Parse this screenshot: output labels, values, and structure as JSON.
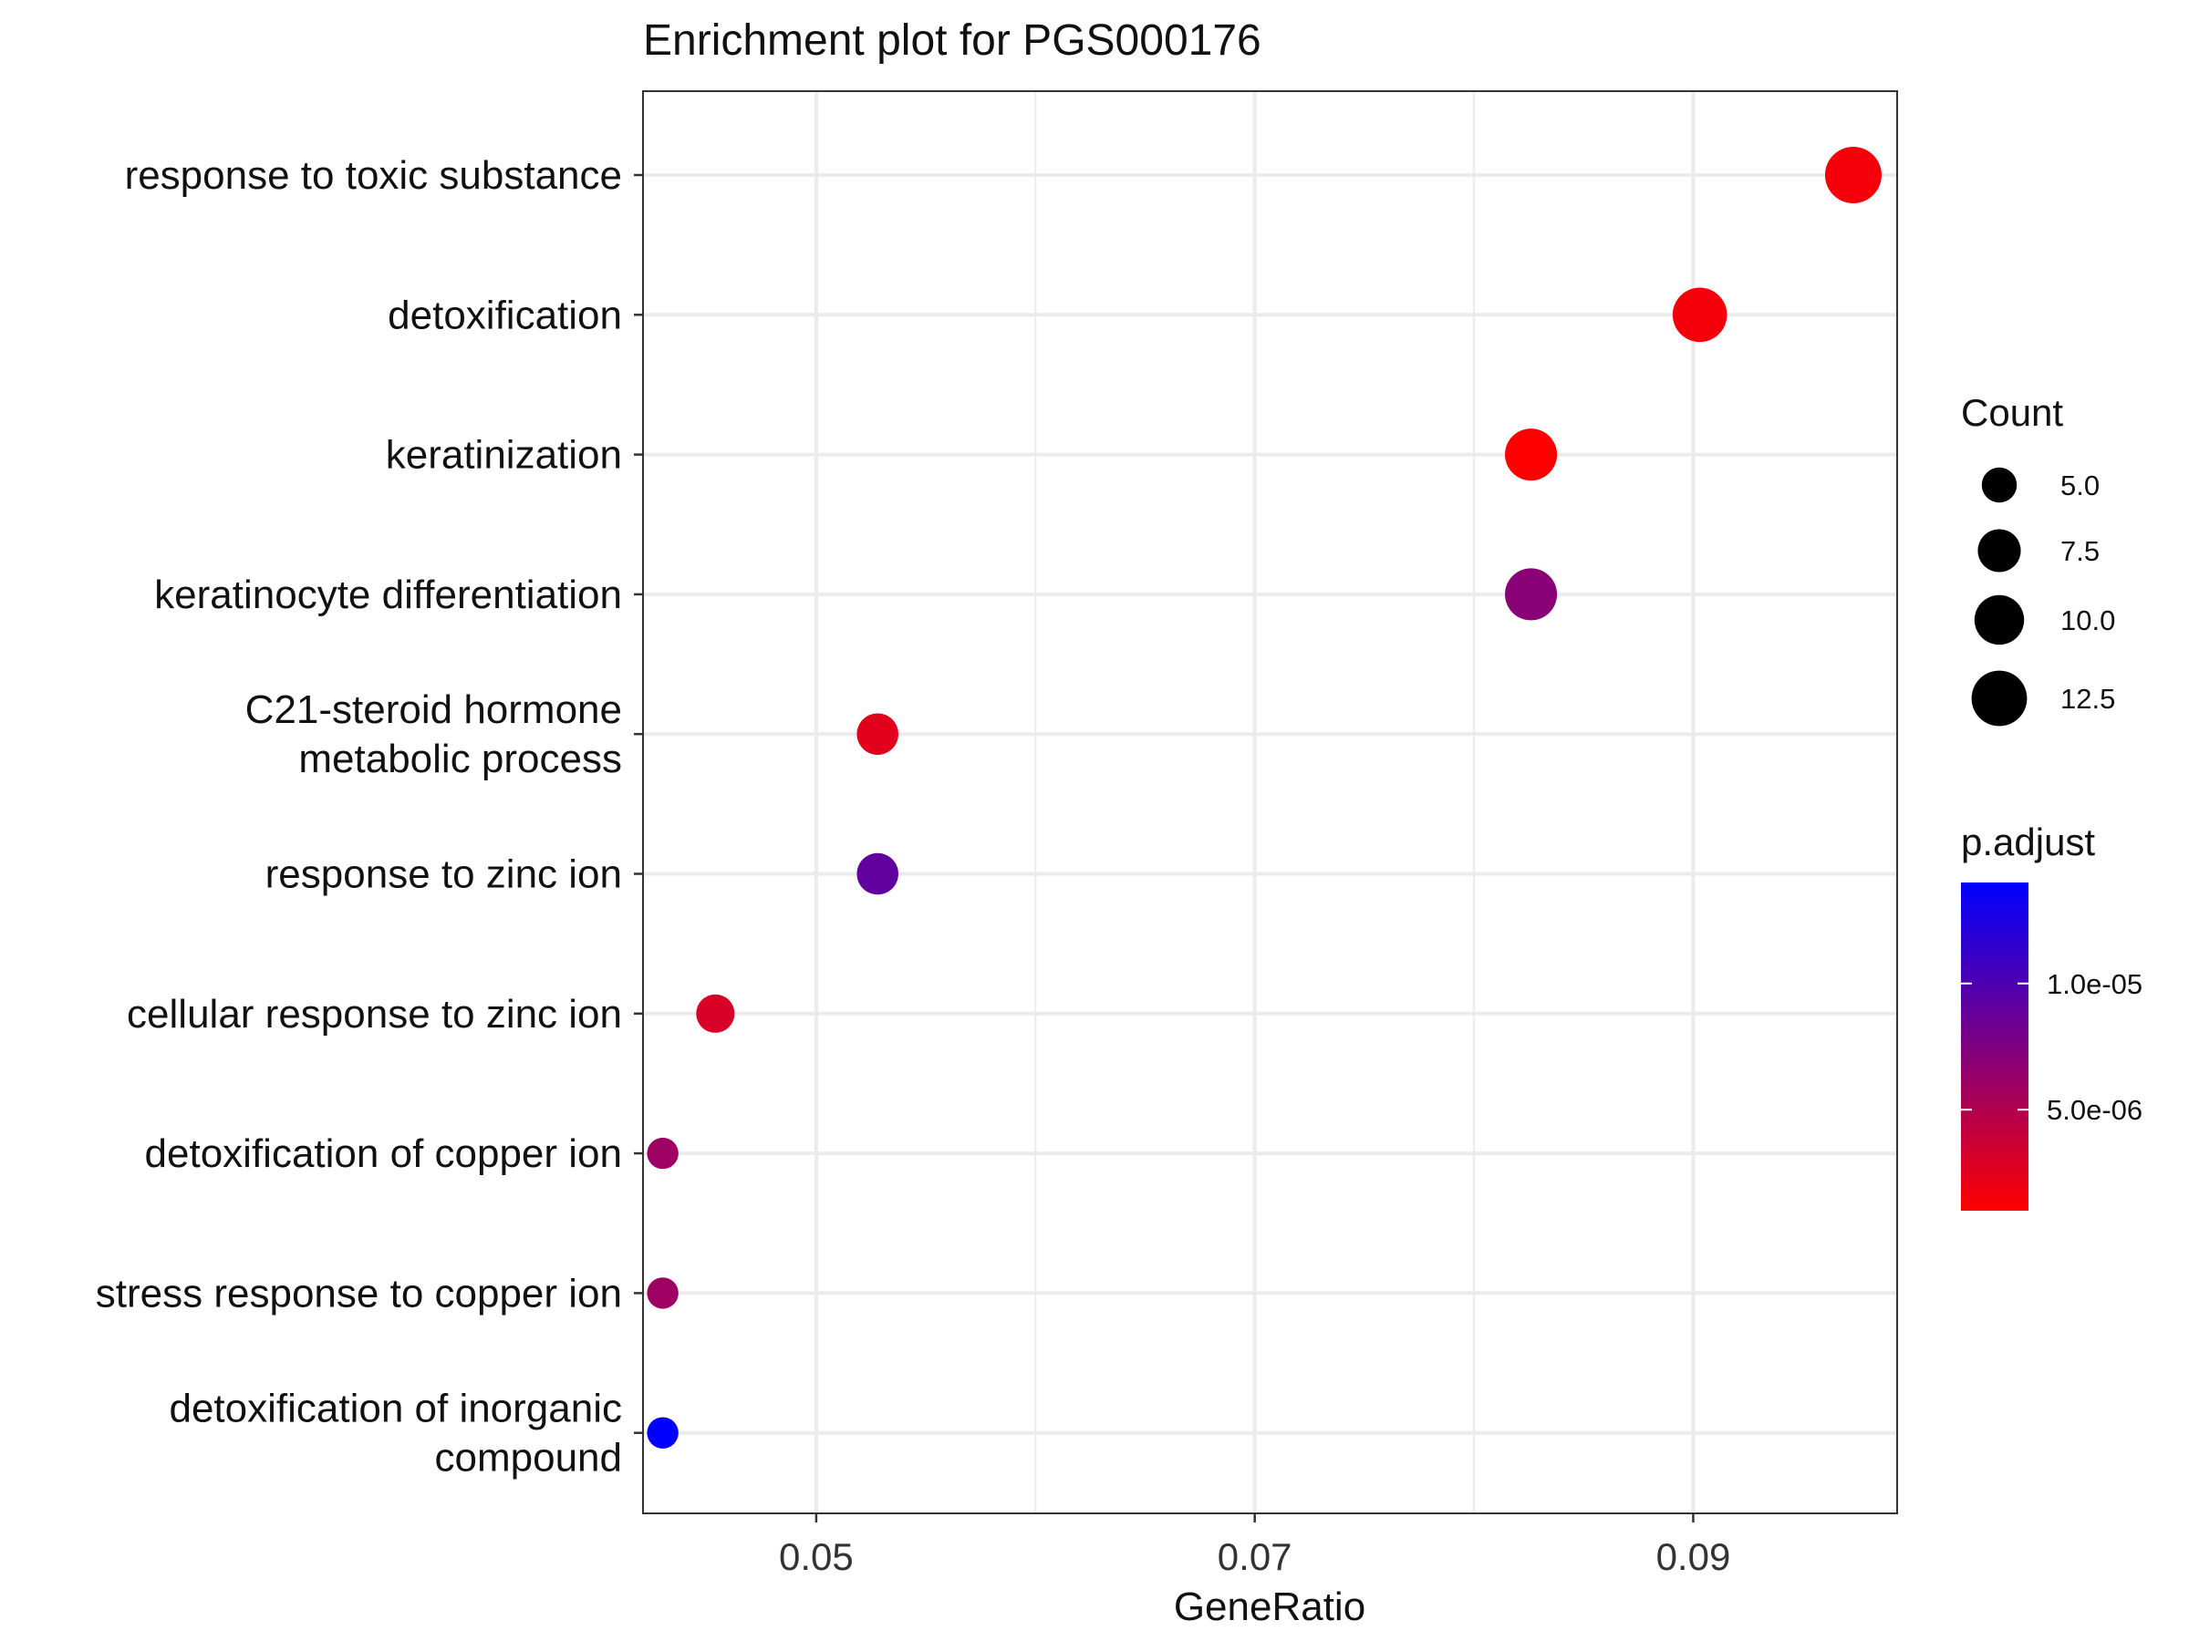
{
  "chart_data": {
    "type": "scatter",
    "title": "Enrichment plot for PGS000176",
    "xlabel": "GeneRatio",
    "ylabel": "",
    "xlim": [
      0.0421,
      0.0993
    ],
    "x_ticks": [
      0.05,
      0.07,
      0.09
    ],
    "x_tick_labels": [
      "0.05",
      "0.07",
      "0.09"
    ],
    "grid": true,
    "categories": [
      [
        "response to toxic substance"
      ],
      [
        "detoxification"
      ],
      [
        "keratinization"
      ],
      [
        "keratinocyte differentiation"
      ],
      [
        "C21-steroid hormone",
        "metabolic process"
      ],
      [
        "response to zinc ion"
      ],
      [
        "cellular response to zinc ion"
      ],
      [
        "detoxification of copper ion"
      ],
      [
        "stress response to copper ion"
      ],
      [
        "detoxification of inorganic",
        "compound"
      ]
    ],
    "points": [
      {
        "x": 0.0973,
        "count": 13,
        "p_adjust": 1.5e-06
      },
      {
        "x": 0.0903,
        "count": 12,
        "p_adjust": 1.5e-06
      },
      {
        "x": 0.0826,
        "count": 11,
        "p_adjust": 1e-06
      },
      {
        "x": 0.0826,
        "count": 11,
        "p_adjust": 7e-06
      },
      {
        "x": 0.0528,
        "count": 7,
        "p_adjust": 2.5e-06
      },
      {
        "x": 0.0528,
        "count": 7,
        "p_adjust": 9e-06
      },
      {
        "x": 0.0454,
        "count": 6,
        "p_adjust": 3e-06
      },
      {
        "x": 0.043,
        "count": 4,
        "p_adjust": 6e-06
      },
      {
        "x": 0.043,
        "count": 4,
        "p_adjust": 6e-06
      },
      {
        "x": 0.043,
        "count": 4,
        "p_adjust": 1.4e-05
      }
    ],
    "legend_size": {
      "title": "Count",
      "values": [
        5.0,
        7.5,
        10.0,
        12.5
      ],
      "labels": [
        "5.0",
        "7.5",
        "10.0",
        "12.5"
      ]
    },
    "legend_color": {
      "title": "p.adjust",
      "range": [
        1e-06,
        1.4e-05
      ],
      "ticks": [
        1e-05,
        5e-06
      ],
      "labels": [
        "1.0e-05",
        "5.0e-06"
      ],
      "low_color": "#ff0000",
      "high_color": "#0000ff"
    },
    "legend_placement": "right"
  }
}
